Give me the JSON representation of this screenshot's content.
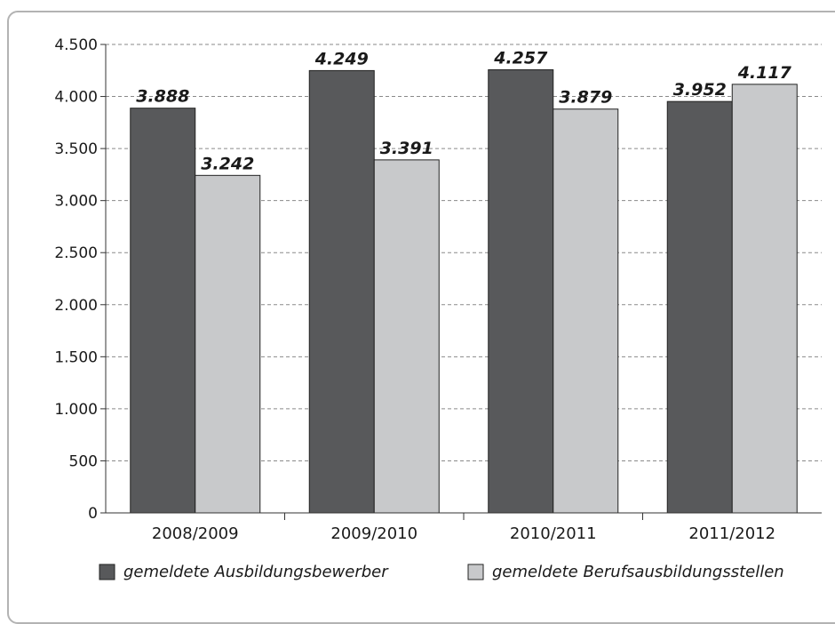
{
  "chart_data": {
    "type": "bar",
    "categories": [
      "2008/2009",
      "2009/2010",
      "2010/2011",
      "2011/2012"
    ],
    "series": [
      {
        "name": "gemeldete Ausbildungsbewerber",
        "values": [
          3888,
          4249,
          4257,
          3952
        ],
        "labels": [
          "3.888",
          "4.249",
          "4.257",
          "3.952"
        ],
        "color": "#58595b"
      },
      {
        "name": "gemeldete Berufsausbildungsstellen",
        "values": [
          3242,
          3391,
          3879,
          4117
        ],
        "labels": [
          "3.242",
          "3.391",
          "3.879",
          "4.117"
        ],
        "color": "#c8c9cb"
      }
    ],
    "ylim": [
      0,
      4500
    ],
    "yticks": [
      0,
      500,
      1000,
      1500,
      2000,
      2500,
      3000,
      3500,
      4000,
      4500
    ],
    "ytick_labels": [
      "0",
      "500",
      "1.000",
      "1.500",
      "2.000",
      "2.500",
      "3.000",
      "3.500",
      "4.000",
      "4.500"
    ],
    "grid": true,
    "legend": "bottom",
    "title": "",
    "xlabel": "",
    "ylabel": ""
  }
}
